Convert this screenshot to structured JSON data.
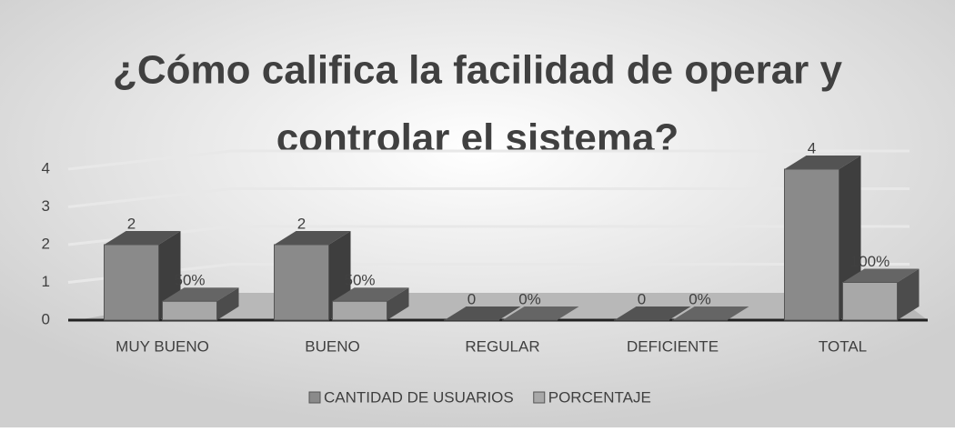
{
  "chart_data": {
    "type": "bar3d",
    "title": [
      "¿Cómo califica la facilidad de operar y",
      "controlar el sistema?"
    ],
    "categories": [
      "MUY BUENO",
      "BUENO",
      "REGULAR",
      "DEFICIENTE",
      "TOTAL"
    ],
    "series": [
      {
        "name": "CANTIDAD DE USUARIOS",
        "color": "#8a8a8a",
        "values": [
          2,
          2,
          0,
          0,
          4
        ]
      },
      {
        "name": "PORCENTAJE",
        "color": "#a8a8a8",
        "values": [
          0.5,
          0.5,
          0,
          0,
          1
        ],
        "value_labels": [
          "50%",
          "50%",
          "0%",
          "0%",
          "100%"
        ]
      }
    ],
    "ylim": [
      0,
      4
    ],
    "yticks": [
      0,
      1,
      2,
      3,
      4
    ],
    "grid": true,
    "legend": "bottom"
  }
}
